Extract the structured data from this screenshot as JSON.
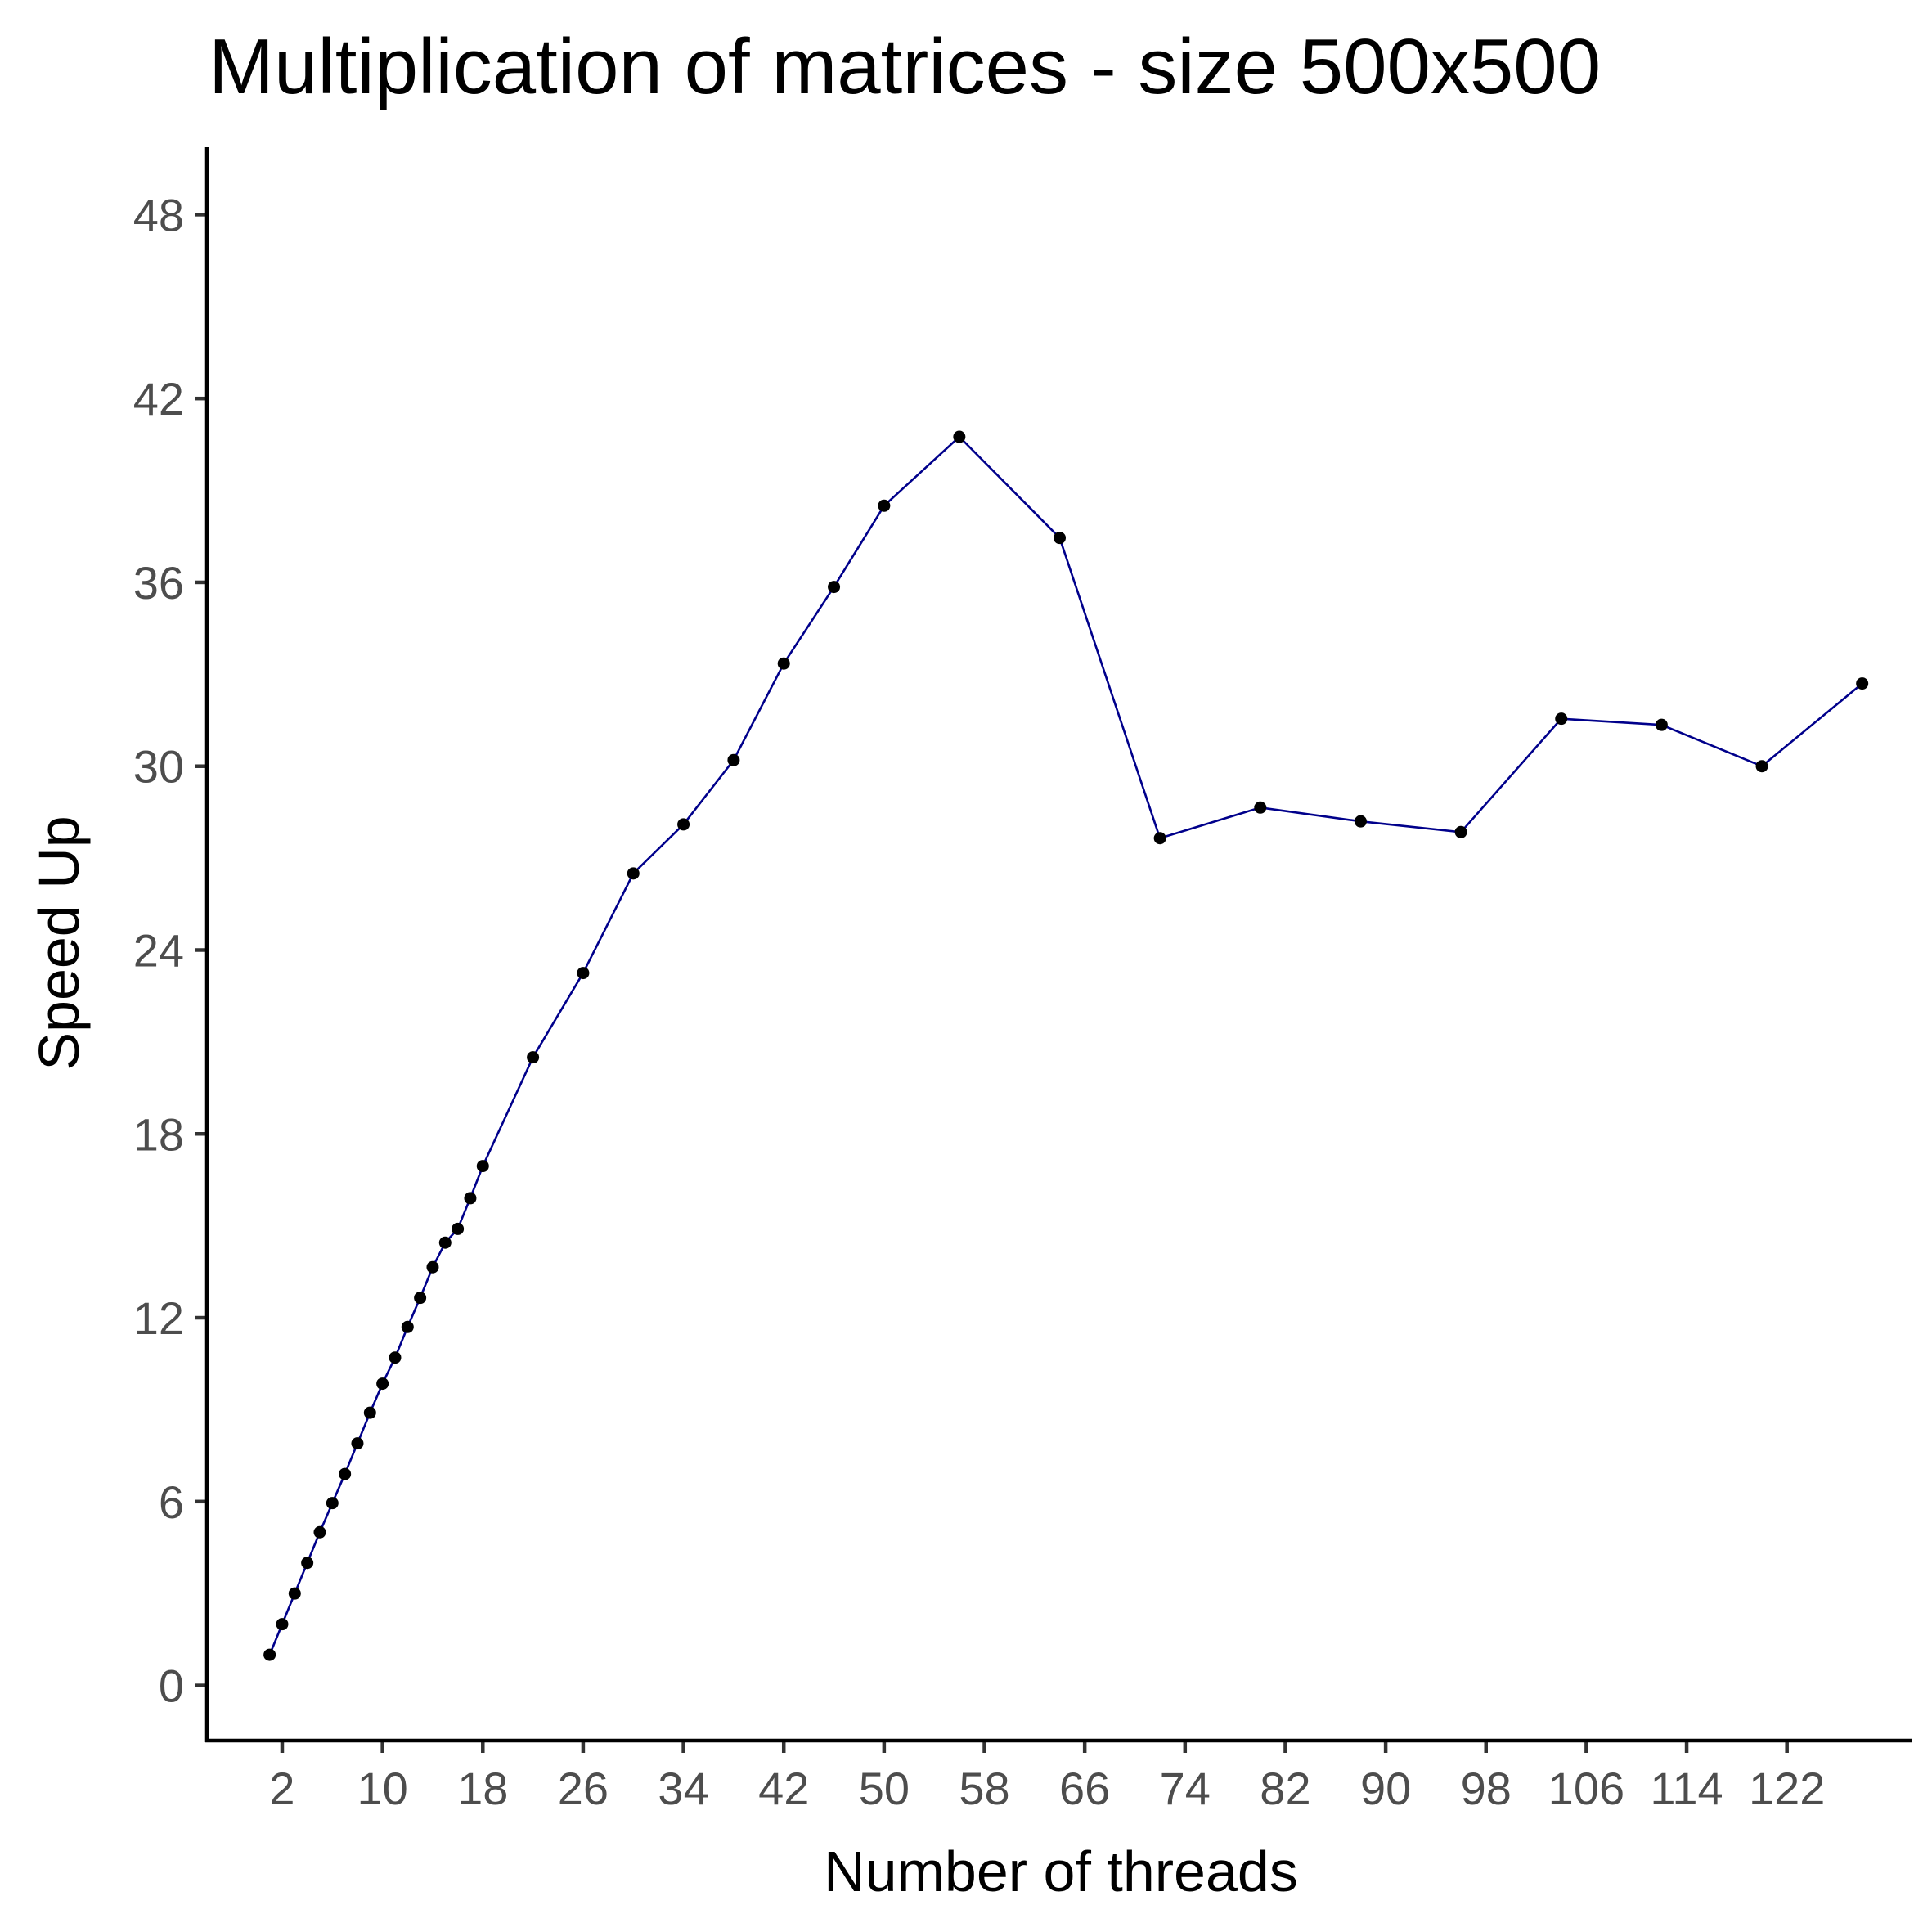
{
  "chart_data": {
    "type": "line",
    "title": "Multiplication of matrices - size 500x500",
    "xlabel": "Number of threads",
    "ylabel": "Speed Up",
    "xlim": [
      -4,
      132
    ],
    "ylim": [
      -1.8,
      50.2
    ],
    "x_ticks": [
      2,
      10,
      18,
      26,
      34,
      42,
      50,
      58,
      66,
      74,
      82,
      90,
      98,
      106,
      114,
      122
    ],
    "x_tick_labels": [
      "2",
      "10",
      "18",
      "26",
      "34",
      "42",
      "50",
      "58",
      "66",
      "74",
      "82",
      "90",
      "98",
      "106",
      "114",
      "122"
    ],
    "y_ticks": [
      0,
      6,
      12,
      18,
      24,
      30,
      36,
      42,
      48
    ],
    "y_tick_labels": [
      "0",
      "6",
      "12",
      "18",
      "24",
      "30",
      "36",
      "42",
      "48"
    ],
    "grid": false,
    "legend": "none",
    "line_color": "#00008b",
    "point_color": "#000000",
    "series": [
      {
        "x": [
          1,
          2,
          3,
          4,
          5,
          6,
          7,
          8,
          9,
          10,
          11,
          12,
          13,
          14,
          15,
          16,
          17,
          18,
          22,
          26,
          30,
          34,
          38,
          42,
          46,
          50,
          56,
          64,
          72,
          80,
          88,
          96,
          104,
          112,
          120,
          128
        ],
        "y": [
          1.0,
          2.0,
          3.0,
          4.0,
          5.0,
          5.95,
          6.9,
          7.9,
          8.9,
          9.85,
          10.7,
          11.7,
          12.65,
          13.65,
          14.45,
          14.9,
          15.9,
          16.95,
          20.5,
          23.25,
          26.5,
          28.1,
          30.2,
          33.35,
          35.85,
          38.5,
          40.75,
          37.45,
          27.65,
          28.65,
          28.2,
          27.85,
          31.55,
          31.35,
          30.0,
          32.7
        ]
      }
    ]
  }
}
